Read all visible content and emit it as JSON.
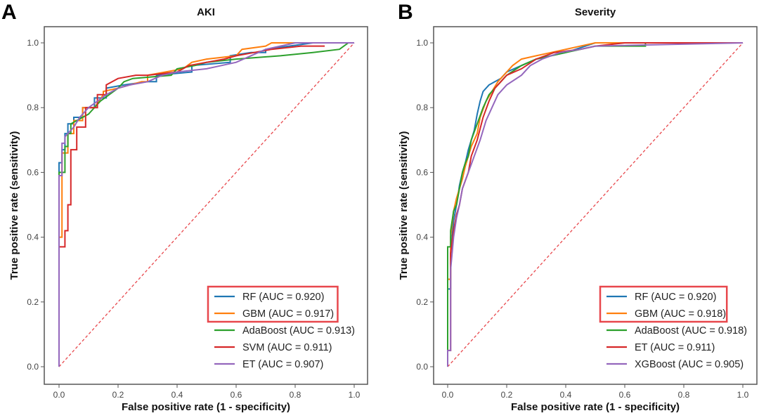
{
  "chart_data": [
    {
      "type": "line",
      "panel_letter": "A",
      "title": "AKI",
      "xlabel": "False positive rate (1 - specificity)",
      "ylabel": "True positive rate (sensitivity)",
      "xlim": [
        0.0,
        1.0
      ],
      "ylim": [
        0.0,
        1.0
      ],
      "xticks": [
        "0.0",
        "0.2",
        "0.4",
        "0.6",
        "0.8",
        "1.0"
      ],
      "yticks": [
        "0.0",
        "0.2",
        "0.4",
        "0.6",
        "0.8",
        "1.0"
      ],
      "grid": false,
      "legend_position": "bottom-right",
      "highlighted_legend_entries": [
        0,
        1
      ],
      "highlight_color": "#e8474c",
      "diagonal": {
        "style": "dashed",
        "color": "#e8474c"
      },
      "series": [
        {
          "name": "RF (AUC = 0.920)",
          "color": "#1f77b4",
          "x": [
            0,
            0,
            0.01,
            0.01,
            0.02,
            0.02,
            0.03,
            0.03,
            0.05,
            0.05,
            0.08,
            0.08,
            0.12,
            0.12,
            0.16,
            0.16,
            0.22,
            0.3,
            0.33,
            0.33,
            0.45,
            0.45,
            0.58,
            0.58,
            0.65,
            0.7,
            0.7,
            0.78,
            0.86,
            1.0
          ],
          "y": [
            0,
            0.63,
            0.63,
            0.67,
            0.67,
            0.72,
            0.72,
            0.75,
            0.75,
            0.77,
            0.77,
            0.8,
            0.8,
            0.83,
            0.83,
            0.86,
            0.87,
            0.88,
            0.88,
            0.9,
            0.91,
            0.93,
            0.94,
            0.96,
            0.97,
            0.97,
            0.98,
            0.99,
            1.0,
            1.0
          ]
        },
        {
          "name": "GBM (AUC = 0.917)",
          "color": "#ff7f0e",
          "x": [
            0,
            0,
            0.01,
            0.01,
            0.03,
            0.03,
            0.05,
            0.05,
            0.08,
            0.08,
            0.12,
            0.15,
            0.15,
            0.2,
            0.28,
            0.3,
            0.3,
            0.42,
            0.45,
            0.5,
            0.6,
            0.62,
            0.7,
            0.72,
            1.0
          ],
          "y": [
            0,
            0.4,
            0.4,
            0.66,
            0.66,
            0.72,
            0.72,
            0.76,
            0.76,
            0.8,
            0.8,
            0.84,
            0.85,
            0.86,
            0.88,
            0.88,
            0.9,
            0.92,
            0.94,
            0.95,
            0.96,
            0.98,
            0.99,
            1.0,
            1.0
          ]
        },
        {
          "name": "AdaBoost (AUC = 0.913)",
          "color": "#2ca02c",
          "x": [
            0,
            0,
            0.02,
            0.02,
            0.03,
            0.03,
            0.04,
            0.04,
            0.06,
            0.1,
            0.14,
            0.2,
            0.22,
            0.25,
            0.38,
            0.4,
            0.46,
            0.5,
            0.6,
            0.75,
            0.86,
            0.95,
            0.98,
            1.0
          ],
          "y": [
            0,
            0.6,
            0.6,
            0.68,
            0.68,
            0.72,
            0.72,
            0.75,
            0.76,
            0.78,
            0.82,
            0.86,
            0.88,
            0.89,
            0.9,
            0.92,
            0.93,
            0.94,
            0.95,
            0.96,
            0.97,
            0.98,
            1.0,
            1.0
          ]
        },
        {
          "name": "SVM (AUC = 0.911)",
          "color": "#d62728",
          "x": [
            0,
            0,
            0.02,
            0.02,
            0.03,
            0.03,
            0.04,
            0.04,
            0.06,
            0.06,
            0.09,
            0.09,
            0.13,
            0.13,
            0.16,
            0.16,
            0.2,
            0.26,
            0.3,
            0.4,
            0.44,
            0.5,
            0.56,
            0.6,
            0.66,
            0.72,
            0.82,
            0.9
          ],
          "y": [
            0,
            0.37,
            0.37,
            0.42,
            0.42,
            0.5,
            0.5,
            0.67,
            0.67,
            0.74,
            0.74,
            0.8,
            0.8,
            0.84,
            0.84,
            0.87,
            0.89,
            0.9,
            0.9,
            0.91,
            0.93,
            0.94,
            0.95,
            0.96,
            0.97,
            0.98,
            0.99,
            0.99
          ]
        },
        {
          "name": "ET (AUC = 0.907)",
          "color": "#9467bd",
          "x": [
            0,
            0,
            0.01,
            0.01,
            0.02,
            0.02,
            0.05,
            0.07,
            0.1,
            0.13,
            0.16,
            0.2,
            0.24,
            0.3,
            0.35,
            0.4,
            0.5,
            0.55,
            0.6,
            0.65,
            0.7,
            0.8,
            1.0
          ],
          "y": [
            0,
            0.59,
            0.59,
            0.69,
            0.69,
            0.71,
            0.74,
            0.77,
            0.8,
            0.82,
            0.84,
            0.86,
            0.87,
            0.88,
            0.9,
            0.91,
            0.92,
            0.93,
            0.94,
            0.96,
            0.98,
            1.0,
            1.0
          ]
        }
      ]
    },
    {
      "type": "line",
      "panel_letter": "B",
      "title": "Severity",
      "xlabel": "False positive rate (1 - specificity)",
      "ylabel": "True positive rate (sensitivity)",
      "xlim": [
        0.0,
        1.0
      ],
      "ylim": [
        0.0,
        1.0
      ],
      "xticks": [
        "0.0",
        "0.2",
        "0.4",
        "0.6",
        "0.8",
        "1.0"
      ],
      "yticks": [
        "0.0",
        "0.2",
        "0.4",
        "0.6",
        "0.8",
        "1.0"
      ],
      "grid": false,
      "legend_position": "bottom-right",
      "highlighted_legend_entries": [
        0,
        1
      ],
      "highlight_color": "#e8474c",
      "diagonal": {
        "style": "dashed",
        "color": "#e8474c"
      },
      "series": [
        {
          "name": "RF (AUC = 0.920)",
          "color": "#1f77b4",
          "x": [
            0,
            0,
            0.01,
            0.01,
            0.02,
            0.03,
            0.04,
            0.05,
            0.06,
            0.07,
            0.08,
            0.09,
            0.1,
            0.11,
            0.12,
            0.14,
            0.16,
            0.18,
            0.2,
            0.25,
            0.3,
            0.35,
            0.4,
            0.5,
            1.0
          ],
          "y": [
            0,
            0.24,
            0.24,
            0.35,
            0.45,
            0.5,
            0.56,
            0.6,
            0.63,
            0.67,
            0.7,
            0.73,
            0.78,
            0.82,
            0.85,
            0.87,
            0.88,
            0.89,
            0.91,
            0.93,
            0.95,
            0.96,
            0.97,
            1.0,
            1.0
          ]
        },
        {
          "name": "GBM (AUC = 0.918)",
          "color": "#ff7f0e",
          "x": [
            0,
            0,
            0.01,
            0.01,
            0.02,
            0.03,
            0.04,
            0.05,
            0.06,
            0.08,
            0.1,
            0.11,
            0.13,
            0.15,
            0.17,
            0.2,
            0.22,
            0.25,
            0.3,
            0.35,
            0.4,
            0.5,
            1.0
          ],
          "y": [
            0,
            0.27,
            0.27,
            0.4,
            0.48,
            0.52,
            0.55,
            0.58,
            0.62,
            0.68,
            0.72,
            0.77,
            0.82,
            0.85,
            0.88,
            0.91,
            0.93,
            0.95,
            0.96,
            0.97,
            0.98,
            1.0,
            1.0
          ]
        },
        {
          "name": "AdaBoost (AUC = 0.918)",
          "color": "#2ca02c",
          "x": [
            0,
            0,
            0.01,
            0.01,
            0.02,
            0.03,
            0.04,
            0.05,
            0.06,
            0.07,
            0.08,
            0.1,
            0.12,
            0.14,
            0.16,
            0.18,
            0.2,
            0.25,
            0.3,
            0.35,
            0.4,
            0.5,
            0.67,
            0.67,
            1.0
          ],
          "y": [
            0,
            0.37,
            0.37,
            0.42,
            0.48,
            0.5,
            0.55,
            0.6,
            0.63,
            0.65,
            0.7,
            0.75,
            0.8,
            0.84,
            0.86,
            0.88,
            0.9,
            0.93,
            0.95,
            0.96,
            0.97,
            0.99,
            0.99,
            1.0,
            1.0
          ]
        },
        {
          "name": "ET (AUC = 0.911)",
          "color": "#d62728",
          "x": [
            0,
            0,
            0.01,
            0.01,
            0.02,
            0.03,
            0.04,
            0.05,
            0.07,
            0.08,
            0.1,
            0.12,
            0.14,
            0.16,
            0.18,
            0.2,
            0.25,
            0.3,
            0.36,
            0.45,
            0.5,
            0.6,
            1.0
          ],
          "y": [
            0,
            0.05,
            0.05,
            0.35,
            0.42,
            0.47,
            0.5,
            0.55,
            0.6,
            0.65,
            0.7,
            0.77,
            0.82,
            0.86,
            0.88,
            0.9,
            0.92,
            0.95,
            0.97,
            0.98,
            0.99,
            1.0,
            1.0
          ]
        },
        {
          "name": "XGBoost (AUC = 0.905)",
          "color": "#9467bd",
          "x": [
            0,
            0,
            0.01,
            0.01,
            0.02,
            0.03,
            0.04,
            0.05,
            0.07,
            0.09,
            0.11,
            0.13,
            0.15,
            0.17,
            0.2,
            0.25,
            0.28,
            0.32,
            0.38,
            0.45,
            0.5,
            1.0
          ],
          "y": [
            0,
            0.05,
            0.05,
            0.3,
            0.4,
            0.46,
            0.5,
            0.55,
            0.6,
            0.65,
            0.7,
            0.76,
            0.8,
            0.84,
            0.87,
            0.9,
            0.93,
            0.95,
            0.97,
            0.98,
            0.99,
            1.0
          ]
        }
      ]
    }
  ]
}
